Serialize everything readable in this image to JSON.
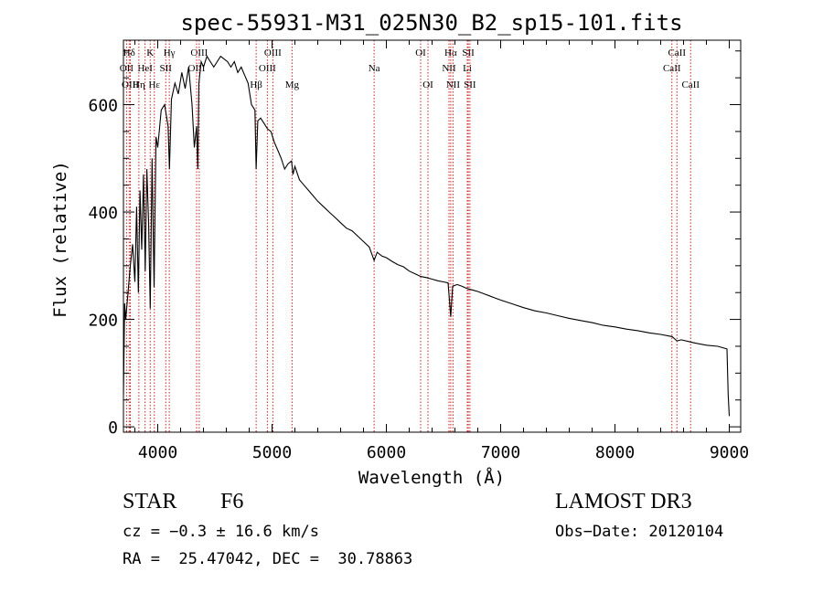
{
  "chart_data": {
    "type": "line",
    "title": "spec-55931-M31_025N30_B2_sp15-101.fits",
    "xlabel": "Wavelength (Å)",
    "ylabel": "Flux (relative)",
    "xlim": [
      3700,
      9100
    ],
    "ylim": [
      -10,
      720
    ],
    "xticks": [
      4000,
      5000,
      6000,
      7000,
      8000,
      9000
    ],
    "xtick_labels": [
      "4000",
      "5000",
      "6000",
      "7000",
      "8000",
      "9000"
    ],
    "yticks": [
      0,
      200,
      400,
      600
    ],
    "ytick_labels": [
      "0",
      "200",
      "400",
      "600"
    ],
    "grid": false,
    "series": [
      {
        "name": "flux",
        "x": [
          3700,
          3710,
          3720,
          3740,
          3760,
          3780,
          3800,
          3815,
          3830,
          3845,
          3860,
          3875,
          3890,
          3905,
          3920,
          3934,
          3950,
          3968,
          3985,
          4000,
          4030,
          4060,
          4090,
          4102,
          4120,
          4150,
          4180,
          4210,
          4240,
          4270,
          4300,
          4320,
          4340,
          4350,
          4360,
          4380,
          4400,
          4430,
          4460,
          4490,
          4520,
          4550,
          4580,
          4610,
          4640,
          4670,
          4700,
          4730,
          4760,
          4790,
          4820,
          4850,
          4861,
          4875,
          4900,
          4930,
          4960,
          4990,
          5020,
          5050,
          5080,
          5110,
          5140,
          5170,
          5183,
          5200,
          5240,
          5280,
          5320,
          5360,
          5400,
          5450,
          5500,
          5550,
          5600,
          5650,
          5700,
          5750,
          5800,
          5850,
          5893,
          5920,
          5960,
          6000,
          6050,
          6100,
          6150,
          6200,
          6250,
          6300,
          6350,
          6400,
          6450,
          6500,
          6540,
          6563,
          6580,
          6620,
          6660,
          6700,
          6750,
          6800,
          6850,
          6900,
          6950,
          7000,
          7100,
          7200,
          7300,
          7400,
          7500,
          7600,
          7700,
          7800,
          7900,
          8000,
          8100,
          8200,
          8300,
          8400,
          8500,
          8542,
          8580,
          8662,
          8700,
          8800,
          8900,
          8980,
          8990,
          9000
        ],
        "values": [
          60,
          230,
          200,
          250,
          300,
          340,
          270,
          410,
          250,
          440,
          330,
          470,
          290,
          480,
          380,
          220,
          500,
          260,
          540,
          520,
          590,
          600,
          560,
          480,
          610,
          640,
          620,
          660,
          630,
          670,
          600,
          520,
          560,
          480,
          640,
          680,
          670,
          690,
          680,
          670,
          680,
          690,
          685,
          680,
          670,
          680,
          660,
          670,
          655,
          640,
          600,
          590,
          480,
          570,
          575,
          565,
          555,
          550,
          530,
          515,
          500,
          480,
          490,
          495,
          470,
          485,
          460,
          450,
          440,
          430,
          420,
          410,
          400,
          390,
          380,
          370,
          365,
          355,
          345,
          335,
          310,
          325,
          318,
          315,
          308,
          302,
          298,
          290,
          285,
          280,
          278,
          275,
          272,
          270,
          268,
          205,
          262,
          265,
          262,
          258,
          255,
          252,
          248,
          244,
          240,
          236,
          229,
          222,
          216,
          212,
          207,
          202,
          198,
          194,
          189,
          186,
          182,
          179,
          175,
          172,
          168,
          160,
          162,
          158,
          156,
          152,
          150,
          145,
          60,
          20
        ]
      }
    ],
    "line_marks": [
      {
        "label": "Hδ",
        "x": 3750,
        "row": 1
      },
      {
        "label": "OII",
        "x": 3727,
        "row": 2
      },
      {
        "label": "OIII",
        "x": 3760,
        "row": 3
      },
      {
        "label": "K",
        "x": 3934,
        "row": 1
      },
      {
        "label": "HeI",
        "x": 3889,
        "row": 2
      },
      {
        "label": "Hη",
        "x": 3835,
        "row": 3
      },
      {
        "label": "SII",
        "x": 4070,
        "row": 2
      },
      {
        "label": "Hε",
        "x": 3970,
        "row": 3
      },
      {
        "label": "Hγ",
        "x": 4101,
        "row": 1
      },
      {
        "label": "OIII",
        "x": 4363,
        "row": 1
      },
      {
        "label": "OIII",
        "x": 4340,
        "row": 2
      },
      {
        "label": "OIII",
        "x": 5007,
        "row": 1
      },
      {
        "label": "OIII",
        "x": 4959,
        "row": 2
      },
      {
        "label": "Hβ",
        "x": 4861,
        "row": 3
      },
      {
        "label": "Mg",
        "x": 5175,
        "row": 3
      },
      {
        "label": "Na",
        "x": 5893,
        "row": 2
      },
      {
        "label": "OI",
        "x": 6300,
        "row": 1
      },
      {
        "label": "OI",
        "x": 6364,
        "row": 3
      },
      {
        "label": "Hα",
        "x": 6563,
        "row": 1
      },
      {
        "label": "NII",
        "x": 6548,
        "row": 2
      },
      {
        "label": "NII",
        "x": 6583,
        "row": 3
      },
      {
        "label": "SII",
        "x": 6717,
        "row": 1
      },
      {
        "label": "Li",
        "x": 6708,
        "row": 2
      },
      {
        "label": "SII",
        "x": 6731,
        "row": 3
      },
      {
        "label": "CaII",
        "x": 8542,
        "row": 1
      },
      {
        "label": "CaII",
        "x": 8498,
        "row": 2
      },
      {
        "label": "CaII",
        "x": 8662,
        "row": 3
      }
    ]
  },
  "info": {
    "object_type": "STAR",
    "subclass": "F6",
    "survey": "LAMOST DR3",
    "redshift": "cz = −0.3 ± 16.6 km/s",
    "obs_date": "Obs−Date: 20120104",
    "coords": "RA =  25.47042, DEC =  30.78863"
  },
  "colors": {
    "line_marker": "#cc2222",
    "spectrum": "#000000"
  }
}
